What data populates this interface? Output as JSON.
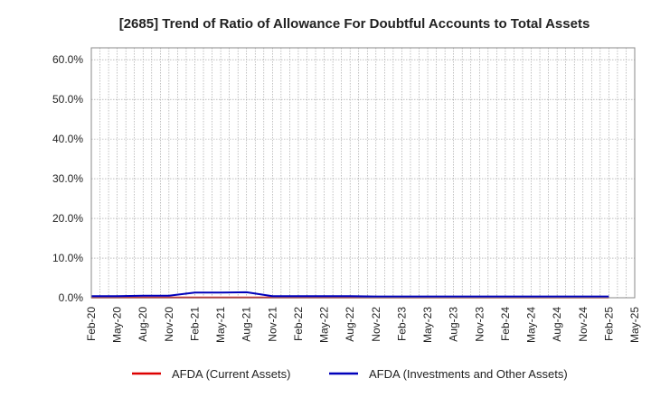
{
  "chart_data": {
    "type": "line",
    "title": "[2685]  Trend of Ratio of Allowance For Doubtful Accounts to Total Assets",
    "xlabel": "",
    "ylabel": "",
    "ylim": [
      0,
      0.63
    ],
    "y_ticks": [
      0,
      0.1,
      0.2,
      0.3,
      0.4,
      0.5,
      0.6
    ],
    "y_tick_labels": [
      "0.0%",
      "10.0%",
      "20.0%",
      "30.0%",
      "40.0%",
      "50.0%",
      "60.0%"
    ],
    "x_range": [
      "2020-02",
      "2025-05"
    ],
    "x_tick_labels": [
      "Feb-20",
      "May-20",
      "Aug-20",
      "Nov-20",
      "Feb-21",
      "May-21",
      "Aug-21",
      "Nov-21",
      "Feb-22",
      "May-22",
      "Aug-22",
      "Nov-22",
      "Feb-23",
      "May-23",
      "Aug-23",
      "Nov-23",
      "Feb-24",
      "May-24",
      "Aug-24",
      "Nov-24",
      "Feb-25",
      "May-25"
    ],
    "grid": true,
    "legend_position": "bottom",
    "x": [
      "2020-02",
      "2020-05",
      "2020-08",
      "2020-11",
      "2021-02",
      "2021-05",
      "2021-08",
      "2021-11",
      "2022-02",
      "2022-05",
      "2022-08",
      "2022-11",
      "2023-02",
      "2023-05",
      "2023-08",
      "2023-11",
      "2024-02",
      "2024-05",
      "2024-08",
      "2024-11",
      "2025-02"
    ],
    "series": [
      {
        "name": "AFDA (Current Assets)",
        "color": "#dd0000",
        "values": [
          0.0005,
          0.0005,
          0.0005,
          0.0005,
          0.0005,
          0.0005,
          0.0005,
          0.0005,
          0.0005,
          0.0005,
          0.0005,
          0.0005,
          0.0005,
          0.0005,
          0.0005,
          0.0005,
          0.0005,
          0.0005,
          0.0005,
          0.0005,
          0.0005
        ]
      },
      {
        "name": "AFDA (Investments and Other Assets)",
        "color": "#0000bb",
        "values": [
          0.004,
          0.004,
          0.005,
          0.005,
          0.013,
          0.013,
          0.014,
          0.004,
          0.004,
          0.004,
          0.004,
          0.003,
          0.003,
          0.003,
          0.003,
          0.003,
          0.003,
          0.003,
          0.003,
          0.003,
          0.003
        ]
      }
    ]
  }
}
